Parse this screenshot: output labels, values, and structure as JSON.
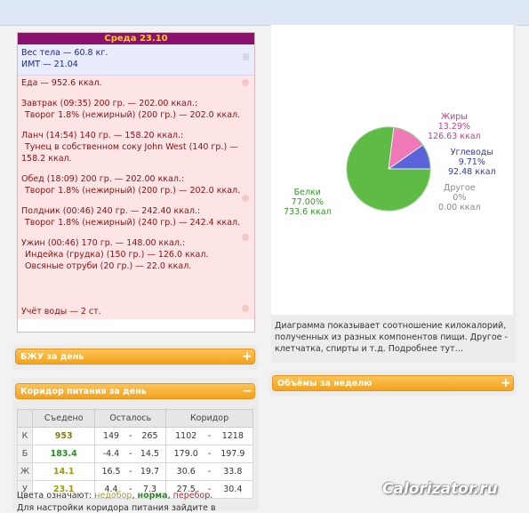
{
  "diary": {
    "date_header": "Среда 23.10",
    "weight": "Вес тела — 60.8 кг.",
    "bmi": "ИМТ — 21.04",
    "food_total": "Еда — 952.6 ккал.",
    "meals": [
      {
        "title": "Завтрак (09:35) 200 гр. — 202.00 ккал.:",
        "items": [
          "Творог 1.8% (нежирный) (200 гр.) — 202.0 ккал."
        ]
      },
      {
        "title": "Ланч (14:54) 140 гр. — 158.20 ккал.:",
        "items": [
          "Тунец в собственном соку John West (140 гр.) —",
          "158.2 ккал."
        ]
      },
      {
        "title": "Обед (18:09) 200 гр. — 202.00 ккал.:",
        "items": [
          "Творог 1.8% (нежирный) (200 гр.) — 202.0 ккал."
        ]
      },
      {
        "title": "Полдник (00:46) 240 гр. — 242.40 ккал.:",
        "items": [
          "Творог 1.8% (нежирный) (240 гр.) — 242.4 ккал."
        ]
      },
      {
        "title": "Ужин (00:46) 170 гр. — 148.00 ккал.:",
        "items": [
          "Индейка (грудка) (150 гр.) — 126.0 ккал.",
          "Овсяные отруби (20 гр.) — 22.0 ккал."
        ]
      }
    ],
    "water": "Учёт воды — 2 ст."
  },
  "panels": {
    "bju_label": "БЖУ за день",
    "corridor_label": "Коридор питания за день",
    "volumes_label": "Объёмы за неделю",
    "plus": "+",
    "minus": "−"
  },
  "corridor": {
    "headers": [
      "Съедено",
      "Осталось",
      "Коридор"
    ],
    "rows": [
      {
        "label": "К",
        "eaten": "953",
        "left_a": "149",
        "left_b": "265",
        "cor_a": "1102",
        "cor_b": "1218",
        "color": "#8a7a10"
      },
      {
        "label": "Б",
        "eaten": "183.4",
        "left_a": "-4.4",
        "left_b": "14.5",
        "cor_a": "179.0",
        "cor_b": "197.9",
        "color": "#2a8a2a"
      },
      {
        "label": "Ж",
        "eaten": "14.1",
        "left_a": "16.5",
        "left_b": "19.7",
        "cor_a": "30.6",
        "cor_b": "33.8",
        "color": "#9a9a10"
      },
      {
        "label": "У",
        "eaten": "23.1",
        "left_a": "4.4",
        "left_b": "7.3",
        "cor_a": "27.5",
        "cor_b": "30.4",
        "color": "#9a9a10"
      }
    ],
    "dash": "-",
    "legend_prefix": "Цвета означают:",
    "legend_low": "недобор",
    "legend_norm": "норма",
    "legend_high": "перебор",
    "legend_comma": ",",
    "legend_dot": ".",
    "cut_line": "Для настройки коридора питания зайдите в"
  },
  "chart_data": {
    "type": "pie",
    "title": "",
    "series": [
      {
        "name": "Белки",
        "value": 733.6,
        "percent": "77.00%",
        "label_value": "733.6 ккал",
        "color": "#5dbb46"
      },
      {
        "name": "Жиры",
        "value": 126.63,
        "percent": "13.29%",
        "label_value": "126.63 ккал",
        "color": "#f07ab8"
      },
      {
        "name": "Углеводы",
        "value": 92.48,
        "percent": "9.71%",
        "label_value": "92.48 ккал",
        "color": "#5b63d8"
      },
      {
        "name": "Другое",
        "value": 0,
        "percent": "0%",
        "label_value": "0.00 ккал",
        "color": "#aaaaaa"
      }
    ],
    "legend": "none"
  },
  "caption": "Диаграмма показывает соотношение килокалорий, полученных из разных компонентов пищи. Другое - клетчатка, спирты и т.д. Подробнее тут…",
  "logo": "Calorizator.ru"
}
